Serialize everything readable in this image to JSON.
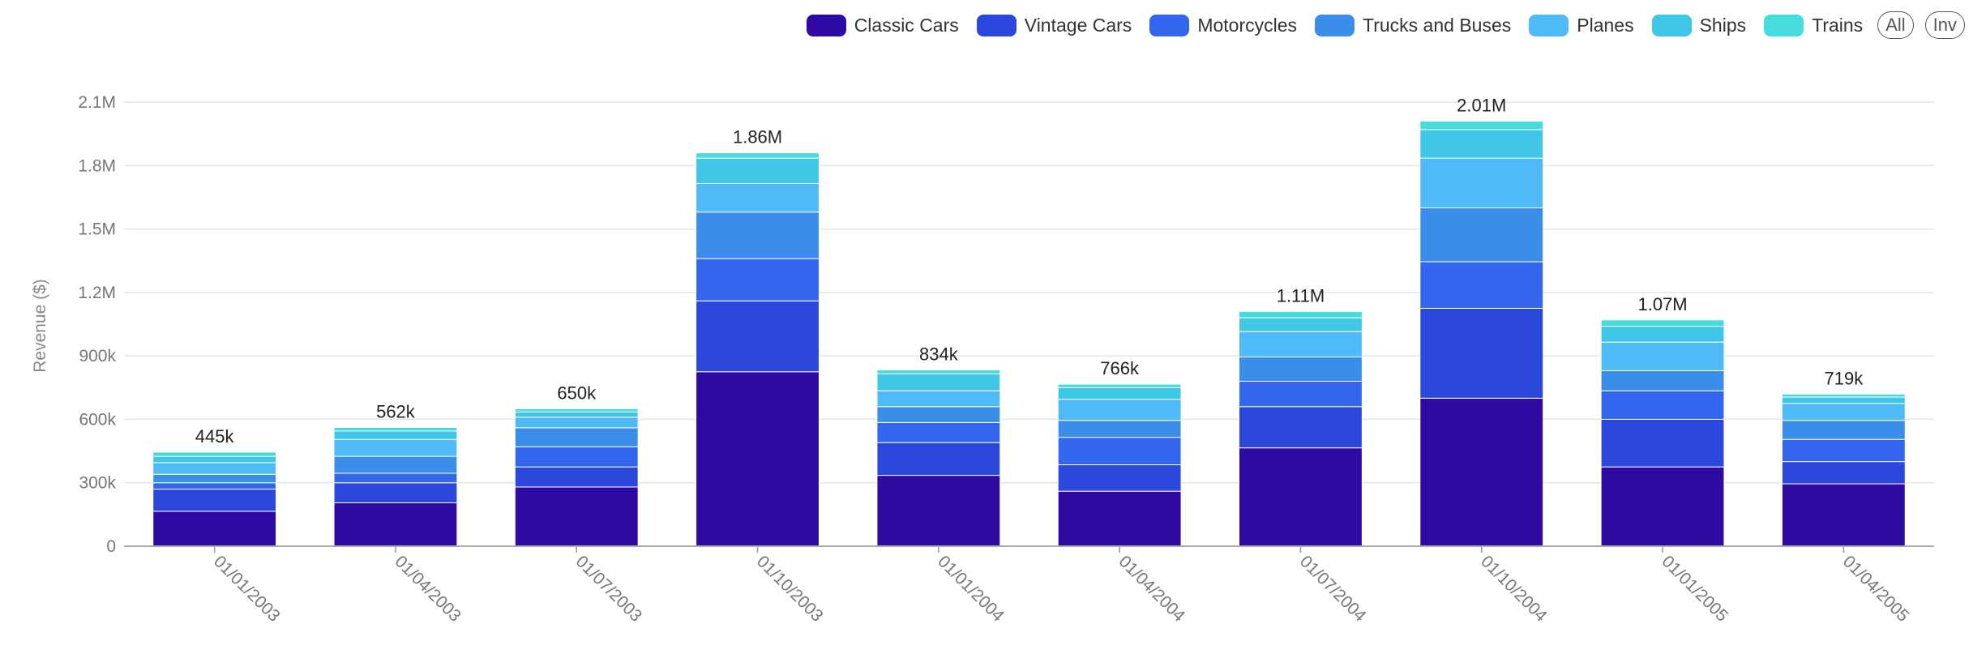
{
  "legend_buttons": {
    "all": "All",
    "inv": "Inv"
  },
  "chart_data": {
    "type": "bar",
    "stacked": true,
    "ylabel": "Revenue ($)",
    "xlabel": "",
    "ylim": [
      0,
      2100000
    ],
    "y_ticks": [
      {
        "value": 0,
        "label": "0"
      },
      {
        "value": 300000,
        "label": "300k"
      },
      {
        "value": 600000,
        "label": "600k"
      },
      {
        "value": 900000,
        "label": "900k"
      },
      {
        "value": 1200000,
        "label": "1.2M"
      },
      {
        "value": 1500000,
        "label": "1.5M"
      },
      {
        "value": 1800000,
        "label": "1.8M"
      },
      {
        "value": 2100000,
        "label": "2.1M"
      }
    ],
    "grid": true,
    "legend_position": "top-right",
    "categories": [
      "01/01/2003",
      "01/04/2003",
      "01/07/2003",
      "01/10/2003",
      "01/01/2004",
      "01/04/2004",
      "01/07/2004",
      "01/10/2004",
      "01/01/2005",
      "01/04/2005"
    ],
    "totals_labels": [
      "445k",
      "562k",
      "650k",
      "1.86M",
      "834k",
      "766k",
      "1.11M",
      "2.01M",
      "1.07M",
      "719k"
    ],
    "series": [
      {
        "name": "Classic Cars",
        "color": "#2e0aa3",
        "values": [
          165000,
          205000,
          280000,
          825000,
          335000,
          260000,
          465000,
          700000,
          375000,
          295000
        ]
      },
      {
        "name": "Vintage Cars",
        "color": "#2b47dc",
        "values": [
          105000,
          95000,
          95000,
          335000,
          155000,
          125000,
          195000,
          425000,
          225000,
          105000
        ]
      },
      {
        "name": "Motorcycles",
        "color": "#3366ee",
        "values": [
          30000,
          45000,
          95000,
          200000,
          95000,
          130000,
          120000,
          220000,
          135000,
          105000
        ]
      },
      {
        "name": "Trucks and Buses",
        "color": "#3a8de8",
        "values": [
          40000,
          80000,
          90000,
          220000,
          75000,
          80000,
          115000,
          255000,
          95000,
          90000
        ]
      },
      {
        "name": "Planes",
        "color": "#4ebaf7",
        "values": [
          55000,
          80000,
          50000,
          135000,
          75000,
          100000,
          120000,
          235000,
          135000,
          80000
        ]
      },
      {
        "name": "Ships",
        "color": "#40c6e6",
        "values": [
          30000,
          40000,
          25000,
          120000,
          80000,
          55000,
          65000,
          135000,
          75000,
          30000
        ]
      },
      {
        "name": "Trains",
        "color": "#45dcdc",
        "values": [
          20000,
          17000,
          15000,
          25000,
          19000,
          16000,
          30000,
          40000,
          30000,
          14000
        ]
      }
    ]
  }
}
